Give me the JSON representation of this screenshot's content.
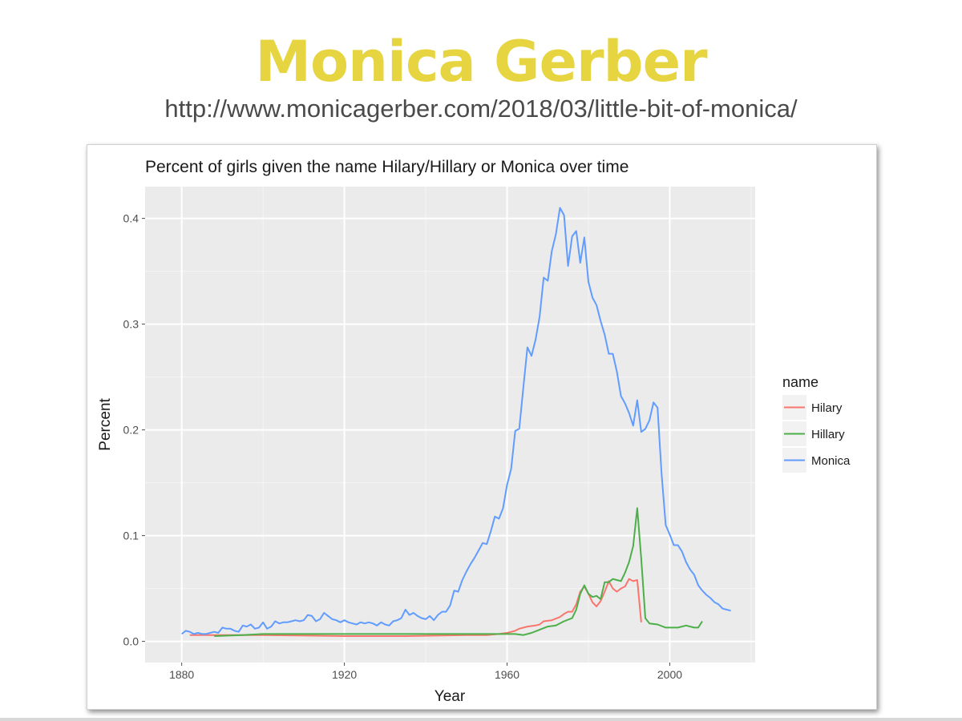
{
  "slide": {
    "title": "Monica Gerber",
    "url": "http://www.monicagerber.com/2018/03/little-bit-of-monica/",
    "title_color": "#e6d541"
  },
  "chart_data": {
    "type": "line",
    "title": "Percent of girls given the name Hilary/Hillary or Monica over time",
    "xlabel": "Year",
    "ylabel": "Percent",
    "xlim": [
      1871,
      2021
    ],
    "ylim": [
      -0.02,
      0.43
    ],
    "xticks": [
      1880,
      1920,
      1960,
      2000
    ],
    "yticks": [
      0.0,
      0.1,
      0.2,
      0.3,
      0.4
    ],
    "xtick_labels": [
      "1880",
      "1920",
      "1960",
      "2000"
    ],
    "ytick_labels": [
      "0.0",
      "0.1",
      "0.2",
      "0.3",
      "0.4"
    ],
    "grid": true,
    "legend_title": "name",
    "legend_position": "right",
    "series": [
      {
        "name": "Hilary",
        "color": "#f8766d",
        "points": [
          [
            1882,
            0.006
          ],
          [
            1890,
            0.006
          ],
          [
            1900,
            0.006
          ],
          [
            1920,
            0.005
          ],
          [
            1935,
            0.005
          ],
          [
            1950,
            0.006
          ],
          [
            1955,
            0.006
          ],
          [
            1958,
            0.007
          ],
          [
            1960,
            0.008
          ],
          [
            1962,
            0.01
          ],
          [
            1963,
            0.012
          ],
          [
            1965,
            0.014
          ],
          [
            1967,
            0.015
          ],
          [
            1968,
            0.016
          ],
          [
            1969,
            0.019
          ],
          [
            1971,
            0.02
          ],
          [
            1973,
            0.023
          ],
          [
            1974,
            0.026
          ],
          [
            1975,
            0.028
          ],
          [
            1976,
            0.028
          ],
          [
            1977,
            0.035
          ],
          [
            1978,
            0.047
          ],
          [
            1979,
            0.052
          ],
          [
            1980,
            0.045
          ],
          [
            1981,
            0.037
          ],
          [
            1982,
            0.033
          ],
          [
            1983,
            0.038
          ],
          [
            1984,
            0.047
          ],
          [
            1985,
            0.057
          ],
          [
            1986,
            0.05
          ],
          [
            1987,
            0.047
          ],
          [
            1988,
            0.05
          ],
          [
            1989,
            0.052
          ],
          [
            1990,
            0.059
          ],
          [
            1991,
            0.057
          ],
          [
            1992,
            0.058
          ],
          [
            1993,
            0.018
          ]
        ]
      },
      {
        "name": "Hillary",
        "color": "#4daf4a",
        "points": [
          [
            1888,
            0.005
          ],
          [
            1895,
            0.006
          ],
          [
            1900,
            0.007
          ],
          [
            1920,
            0.007
          ],
          [
            1940,
            0.007
          ],
          [
            1955,
            0.007
          ],
          [
            1960,
            0.007
          ],
          [
            1962,
            0.007
          ],
          [
            1964,
            0.006
          ],
          [
            1966,
            0.008
          ],
          [
            1968,
            0.011
          ],
          [
            1970,
            0.014
          ],
          [
            1972,
            0.015
          ],
          [
            1974,
            0.019
          ],
          [
            1976,
            0.022
          ],
          [
            1977,
            0.03
          ],
          [
            1978,
            0.045
          ],
          [
            1979,
            0.053
          ],
          [
            1980,
            0.045
          ],
          [
            1981,
            0.042
          ],
          [
            1982,
            0.043
          ],
          [
            1983,
            0.04
          ],
          [
            1984,
            0.056
          ],
          [
            1985,
            0.056
          ],
          [
            1986,
            0.059
          ],
          [
            1987,
            0.058
          ],
          [
            1988,
            0.057
          ],
          [
            1989,
            0.065
          ],
          [
            1990,
            0.075
          ],
          [
            1991,
            0.09
          ],
          [
            1992,
            0.126
          ],
          [
            1993,
            0.078
          ],
          [
            1994,
            0.022
          ],
          [
            1995,
            0.017
          ],
          [
            1997,
            0.016
          ],
          [
            1999,
            0.013
          ],
          [
            2002,
            0.013
          ],
          [
            2004,
            0.015
          ],
          [
            2006,
            0.013
          ],
          [
            2007,
            0.013
          ],
          [
            2008,
            0.019
          ]
        ]
      },
      {
        "name": "Monica",
        "color": "#619cff",
        "points": [
          [
            1880,
            0.007
          ],
          [
            1881,
            0.01
          ],
          [
            1882,
            0.009
          ],
          [
            1883,
            0.007
          ],
          [
            1884,
            0.008
          ],
          [
            1885,
            0.007
          ],
          [
            1886,
            0.007
          ],
          [
            1887,
            0.008
          ],
          [
            1888,
            0.009
          ],
          [
            1889,
            0.008
          ],
          [
            1890,
            0.013
          ],
          [
            1891,
            0.012
          ],
          [
            1892,
            0.012
          ],
          [
            1893,
            0.01
          ],
          [
            1894,
            0.009
          ],
          [
            1895,
            0.015
          ],
          [
            1896,
            0.014
          ],
          [
            1897,
            0.016
          ],
          [
            1898,
            0.012
          ],
          [
            1899,
            0.013
          ],
          [
            1900,
            0.018
          ],
          [
            1901,
            0.012
          ],
          [
            1902,
            0.014
          ],
          [
            1903,
            0.019
          ],
          [
            1904,
            0.017
          ],
          [
            1905,
            0.018
          ],
          [
            1906,
            0.018
          ],
          [
            1907,
            0.019
          ],
          [
            1908,
            0.02
          ],
          [
            1909,
            0.019
          ],
          [
            1910,
            0.02
          ],
          [
            1911,
            0.025
          ],
          [
            1912,
            0.024
          ],
          [
            1913,
            0.019
          ],
          [
            1914,
            0.021
          ],
          [
            1915,
            0.027
          ],
          [
            1916,
            0.024
          ],
          [
            1917,
            0.021
          ],
          [
            1918,
            0.02
          ],
          [
            1919,
            0.018
          ],
          [
            1920,
            0.02
          ],
          [
            1921,
            0.018
          ],
          [
            1922,
            0.017
          ],
          [
            1923,
            0.016
          ],
          [
            1924,
            0.018
          ],
          [
            1925,
            0.017
          ],
          [
            1926,
            0.018
          ],
          [
            1927,
            0.017
          ],
          [
            1928,
            0.015
          ],
          [
            1929,
            0.018
          ],
          [
            1930,
            0.016
          ],
          [
            1931,
            0.015
          ],
          [
            1932,
            0.019
          ],
          [
            1933,
            0.02
          ],
          [
            1934,
            0.022
          ],
          [
            1935,
            0.03
          ],
          [
            1936,
            0.025
          ],
          [
            1937,
            0.027
          ],
          [
            1938,
            0.024
          ],
          [
            1939,
            0.022
          ],
          [
            1940,
            0.021
          ],
          [
            1941,
            0.024
          ],
          [
            1942,
            0.02
          ],
          [
            1943,
            0.025
          ],
          [
            1944,
            0.028
          ],
          [
            1945,
            0.028
          ],
          [
            1946,
            0.034
          ],
          [
            1947,
            0.048
          ],
          [
            1948,
            0.047
          ],
          [
            1949,
            0.058
          ],
          [
            1950,
            0.066
          ],
          [
            1951,
            0.073
          ],
          [
            1952,
            0.079
          ],
          [
            1953,
            0.086
          ],
          [
            1954,
            0.093
          ],
          [
            1955,
            0.092
          ],
          [
            1956,
            0.104
          ],
          [
            1957,
            0.118
          ],
          [
            1958,
            0.116
          ],
          [
            1959,
            0.126
          ],
          [
            1960,
            0.148
          ],
          [
            1961,
            0.163
          ],
          [
            1962,
            0.199
          ],
          [
            1963,
            0.201
          ],
          [
            1964,
            0.24
          ],
          [
            1965,
            0.278
          ],
          [
            1966,
            0.27
          ],
          [
            1967,
            0.285
          ],
          [
            1968,
            0.307
          ],
          [
            1969,
            0.344
          ],
          [
            1970,
            0.341
          ],
          [
            1971,
            0.369
          ],
          [
            1972,
            0.385
          ],
          [
            1973,
            0.41
          ],
          [
            1974,
            0.403
          ],
          [
            1975,
            0.355
          ],
          [
            1976,
            0.383
          ],
          [
            1977,
            0.388
          ],
          [
            1978,
            0.358
          ],
          [
            1979,
            0.382
          ],
          [
            1980,
            0.34
          ],
          [
            1981,
            0.325
          ],
          [
            1982,
            0.318
          ],
          [
            1983,
            0.303
          ],
          [
            1984,
            0.29
          ],
          [
            1985,
            0.272
          ],
          [
            1986,
            0.272
          ],
          [
            1987,
            0.255
          ],
          [
            1988,
            0.232
          ],
          [
            1989,
            0.225
          ],
          [
            1990,
            0.216
          ],
          [
            1991,
            0.204
          ],
          [
            1992,
            0.228
          ],
          [
            1993,
            0.198
          ],
          [
            1994,
            0.201
          ],
          [
            1995,
            0.209
          ],
          [
            1996,
            0.226
          ],
          [
            1997,
            0.221
          ],
          [
            1998,
            0.158
          ],
          [
            1999,
            0.11
          ],
          [
            2000,
            0.101
          ],
          [
            2001,
            0.091
          ],
          [
            2002,
            0.091
          ],
          [
            2003,
            0.085
          ],
          [
            2004,
            0.075
          ],
          [
            2005,
            0.068
          ],
          [
            2006,
            0.063
          ],
          [
            2007,
            0.053
          ],
          [
            2008,
            0.048
          ],
          [
            2009,
            0.044
          ],
          [
            2010,
            0.041
          ],
          [
            2011,
            0.037
          ],
          [
            2012,
            0.035
          ],
          [
            2013,
            0.031
          ],
          [
            2014,
            0.03
          ],
          [
            2015,
            0.029
          ]
        ]
      }
    ]
  }
}
